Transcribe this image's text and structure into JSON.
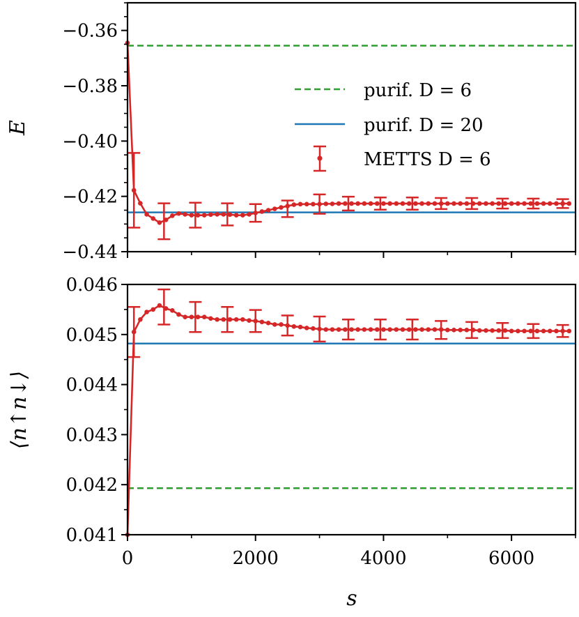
{
  "colors": {
    "purif_d6": "#2ca02c",
    "purif_d20": "#1f77b4",
    "metts": "#d62728"
  },
  "chart_data": [
    {
      "type": "line",
      "panel": "top",
      "ylabel": "E",
      "xlabel": "",
      "xlim": [
        0,
        7000
      ],
      "ylim": [
        -0.44,
        -0.35
      ],
      "yticks": [
        -0.44,
        -0.42,
        -0.4,
        -0.38,
        -0.36
      ],
      "ytick_labels": [
        "−0.44",
        "−0.42",
        "−0.40",
        "−0.38",
        "−0.36"
      ],
      "legend": {
        "position": "center-right",
        "entries": [
          "purif. D = 6",
          "purif. D = 20",
          "METTS D = 6"
        ]
      },
      "reference_lines": [
        {
          "name": "purif. D = 6",
          "value": -0.3655,
          "style": "dashed",
          "color": "#2ca02c"
        },
        {
          "name": "purif. D = 20",
          "value": -0.4258,
          "style": "solid",
          "color": "#1f77b4"
        }
      ],
      "series": [
        {
          "name": "METTS D = 6",
          "color": "#d62728",
          "x": [
            0,
            100,
            200,
            300,
            400,
            500,
            600,
            700,
            800,
            900,
            1000,
            1100,
            1200,
            1300,
            1400,
            1500,
            1600,
            1700,
            1800,
            1900,
            2000,
            2100,
            2200,
            2300,
            2400,
            2500,
            2600,
            2700,
            2800,
            2900,
            3000,
            3100,
            3200,
            3300,
            3400,
            3500,
            3600,
            3700,
            3800,
            3900,
            4000,
            4100,
            4200,
            4300,
            4400,
            4500,
            4600,
            4700,
            4800,
            4900,
            5000,
            5100,
            5200,
            5300,
            5400,
            5500,
            5600,
            5700,
            5800,
            5900,
            6000,
            6100,
            6200,
            6300,
            6400,
            6500,
            6600,
            6700,
            6800,
            6900
          ],
          "y": [
            -0.3645,
            -0.4178,
            -0.4225,
            -0.4265,
            -0.428,
            -0.4295,
            -0.4285,
            -0.427,
            -0.4262,
            -0.4265,
            -0.4268,
            -0.4268,
            -0.4268,
            -0.4266,
            -0.4265,
            -0.4265,
            -0.4266,
            -0.4268,
            -0.4268,
            -0.4265,
            -0.426,
            -0.4255,
            -0.425,
            -0.4245,
            -0.424,
            -0.4235,
            -0.423,
            -0.4228,
            -0.4228,
            -0.4228,
            -0.4228,
            -0.4227,
            -0.4227,
            -0.4226,
            -0.4226,
            -0.4226,
            -0.4226,
            -0.4226,
            -0.4226,
            -0.4226,
            -0.4226,
            -0.4226,
            -0.4226,
            -0.4226,
            -0.4226,
            -0.4226,
            -0.4226,
            -0.4226,
            -0.4226,
            -0.4226,
            -0.4226,
            -0.4226,
            -0.4226,
            -0.4226,
            -0.4226,
            -0.4226,
            -0.4226,
            -0.4226,
            -0.4226,
            -0.4226,
            -0.4226,
            -0.4226,
            -0.4226,
            -0.4226,
            -0.4226,
            -0.4226,
            -0.4226,
            -0.4226,
            -0.4226,
            -0.4226
          ],
          "errorbars": [
            {
              "x": 100,
              "y": -0.4178,
              "err": 0.0135
            },
            {
              "x": 570,
              "y": -0.429,
              "err": 0.0065
            },
            {
              "x": 1060,
              "y": -0.4268,
              "err": 0.0045
            },
            {
              "x": 1560,
              "y": -0.4265,
              "err": 0.004
            },
            {
              "x": 2000,
              "y": -0.426,
              "err": 0.0032
            },
            {
              "x": 2500,
              "y": -0.4245,
              "err": 0.003
            },
            {
              "x": 3000,
              "y": -0.4228,
              "err": 0.0035
            },
            {
              "x": 3450,
              "y": -0.4226,
              "err": 0.0025
            },
            {
              "x": 3950,
              "y": -0.4226,
              "err": 0.0022
            },
            {
              "x": 4450,
              "y": -0.4226,
              "err": 0.0022
            },
            {
              "x": 4900,
              "y": -0.4226,
              "err": 0.002
            },
            {
              "x": 5380,
              "y": -0.4226,
              "err": 0.002
            },
            {
              "x": 5860,
              "y": -0.4226,
              "err": 0.0018
            },
            {
              "x": 6340,
              "y": -0.4226,
              "err": 0.0018
            },
            {
              "x": 6800,
              "y": -0.4226,
              "err": 0.0016
            }
          ]
        }
      ]
    },
    {
      "type": "line",
      "panel": "bottom",
      "ylabel": "⟨n↑n↓⟩",
      "xlabel": "s",
      "xlim": [
        0,
        7000
      ],
      "ylim": [
        0.041,
        0.046
      ],
      "xticks": [
        0,
        2000,
        4000,
        6000
      ],
      "xtick_labels": [
        "0",
        "2000",
        "4000",
        "6000"
      ],
      "yticks": [
        0.041,
        0.042,
        0.043,
        0.044,
        0.045,
        0.046
      ],
      "ytick_labels": [
        "0.041",
        "0.042",
        "0.043",
        "0.044",
        "0.045",
        "0.046"
      ],
      "reference_lines": [
        {
          "name": "purif. D = 6",
          "value": 0.04193,
          "style": "dashed",
          "color": "#2ca02c"
        },
        {
          "name": "purif. D = 20",
          "value": 0.04482,
          "style": "solid",
          "color": "#1f77b4"
        }
      ],
      "series": [
        {
          "name": "METTS D = 6",
          "color": "#d62728",
          "x": [
            0,
            100,
            200,
            300,
            400,
            500,
            600,
            700,
            800,
            900,
            1000,
            1100,
            1200,
            1300,
            1400,
            1500,
            1600,
            1700,
            1800,
            1900,
            2000,
            2100,
            2200,
            2300,
            2400,
            2500,
            2600,
            2700,
            2800,
            2900,
            3000,
            3100,
            3200,
            3300,
            3400,
            3500,
            3600,
            3700,
            3800,
            3900,
            4000,
            4100,
            4200,
            4300,
            4400,
            4500,
            4600,
            4700,
            4800,
            4900,
            5000,
            5100,
            5200,
            5300,
            5400,
            5500,
            5600,
            5700,
            5800,
            5900,
            6000,
            6100,
            6200,
            6300,
            6400,
            6500,
            6600,
            6700,
            6800,
            6900
          ],
          "y": [
            0.041,
            0.04505,
            0.0453,
            0.04545,
            0.0455,
            0.04558,
            0.04552,
            0.04548,
            0.0454,
            0.04535,
            0.04535,
            0.04535,
            0.04535,
            0.04532,
            0.0453,
            0.0453,
            0.0453,
            0.0453,
            0.0453,
            0.04528,
            0.04527,
            0.04525,
            0.04523,
            0.0452,
            0.0452,
            0.04518,
            0.04516,
            0.04515,
            0.04513,
            0.04512,
            0.04511,
            0.0451,
            0.0451,
            0.0451,
            0.0451,
            0.0451,
            0.0451,
            0.0451,
            0.0451,
            0.0451,
            0.0451,
            0.0451,
            0.0451,
            0.0451,
            0.0451,
            0.0451,
            0.0451,
            0.0451,
            0.0451,
            0.0451,
            0.04509,
            0.04509,
            0.04509,
            0.04509,
            0.04509,
            0.04508,
            0.04508,
            0.04508,
            0.04508,
            0.04508,
            0.04507,
            0.04507,
            0.04507,
            0.04507,
            0.04507,
            0.04507,
            0.04507,
            0.04507,
            0.04507,
            0.04507
          ],
          "errorbars": [
            {
              "x": 100,
              "y": 0.04505,
              "err": 0.0005
            },
            {
              "x": 570,
              "y": 0.04555,
              "err": 0.00035
            },
            {
              "x": 1060,
              "y": 0.04535,
              "err": 0.0003
            },
            {
              "x": 1560,
              "y": 0.0453,
              "err": 0.00025
            },
            {
              "x": 2000,
              "y": 0.04527,
              "err": 0.00022
            },
            {
              "x": 2500,
              "y": 0.04518,
              "err": 0.0002
            },
            {
              "x": 3000,
              "y": 0.04511,
              "err": 0.00025
            },
            {
              "x": 3450,
              "y": 0.0451,
              "err": 0.0002
            },
            {
              "x": 3950,
              "y": 0.0451,
              "err": 0.0002
            },
            {
              "x": 4450,
              "y": 0.0451,
              "err": 0.0002
            },
            {
              "x": 4900,
              "y": 0.04509,
              "err": 0.00018
            },
            {
              "x": 5380,
              "y": 0.04509,
              "err": 0.00016
            },
            {
              "x": 5860,
              "y": 0.04508,
              "err": 0.00015
            },
            {
              "x": 6340,
              "y": 0.04507,
              "err": 0.00014
            },
            {
              "x": 6800,
              "y": 0.04507,
              "err": 0.00012
            }
          ]
        }
      ]
    }
  ]
}
